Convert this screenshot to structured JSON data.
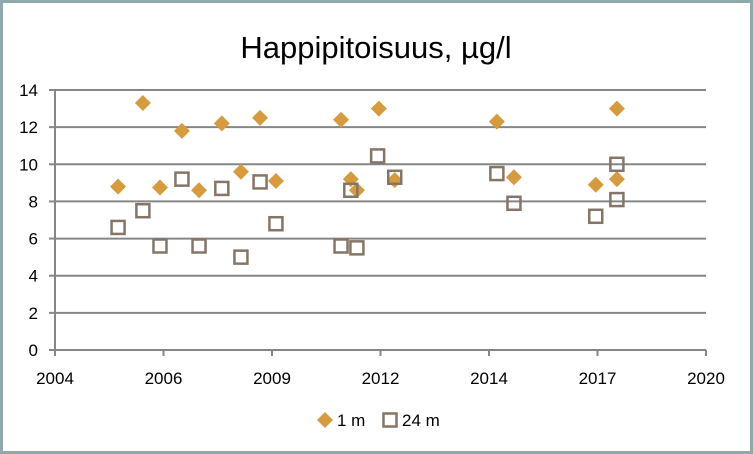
{
  "chart_data": {
    "type": "scatter",
    "title": "Happipitoisuus, µg/l",
    "xlabel": "",
    "ylabel": "",
    "xlim": [
      2004,
      2020
    ],
    "ylim": [
      0,
      14
    ],
    "x_tick_labels": [
      "2004",
      "2006",
      "2009",
      "2012",
      "2014",
      "2017",
      "2020"
    ],
    "y_ticks": [
      0,
      2,
      4,
      6,
      8,
      10,
      12,
      14
    ],
    "grid": "horizontal",
    "legend_position": "bottom",
    "series": [
      {
        "name": "1 m",
        "marker": "diamond",
        "color": "#d69b3e",
        "points": [
          [
            2005.55,
            8.8
          ],
          [
            2006.16,
            13.3
          ],
          [
            2006.58,
            8.75
          ],
          [
            2007.12,
            11.8
          ],
          [
            2007.54,
            8.6
          ],
          [
            2008.1,
            12.2
          ],
          [
            2008.57,
            9.6
          ],
          [
            2009.04,
            12.5
          ],
          [
            2009.43,
            9.1
          ],
          [
            2011.03,
            12.4
          ],
          [
            2011.27,
            9.2
          ],
          [
            2011.42,
            8.6
          ],
          [
            2011.96,
            13.0
          ],
          [
            2012.35,
            9.15
          ],
          [
            2014.86,
            12.3
          ],
          [
            2015.28,
            9.3
          ],
          [
            2017.29,
            8.9
          ],
          [
            2017.81,
            13.0
          ],
          [
            2017.81,
            9.2
          ]
        ]
      },
      {
        "name": "24 m",
        "marker": "square",
        "color": "#857567",
        "points": [
          [
            2005.55,
            6.6
          ],
          [
            2006.16,
            7.5
          ],
          [
            2006.58,
            5.6
          ],
          [
            2007.12,
            9.2
          ],
          [
            2007.54,
            5.6
          ],
          [
            2008.1,
            8.7
          ],
          [
            2008.57,
            5.0
          ],
          [
            2009.04,
            9.05
          ],
          [
            2009.43,
            6.8
          ],
          [
            2011.03,
            5.6
          ],
          [
            2011.27,
            8.6
          ],
          [
            2011.42,
            5.5
          ],
          [
            2011.93,
            10.45
          ],
          [
            2012.35,
            9.3
          ],
          [
            2014.86,
            9.5
          ],
          [
            2015.28,
            7.9
          ],
          [
            2017.29,
            7.2
          ],
          [
            2017.81,
            10.0
          ],
          [
            2017.81,
            8.1
          ]
        ]
      }
    ]
  }
}
